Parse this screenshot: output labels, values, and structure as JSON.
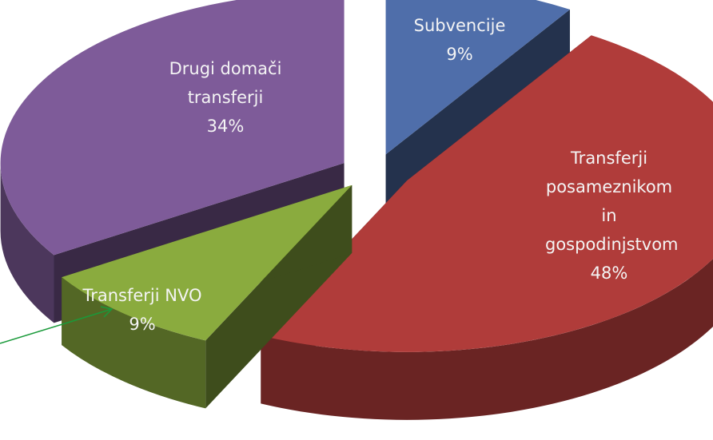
{
  "chart_data": {
    "type": "pie",
    "three_d": true,
    "exploded": true,
    "categories": [
      "Subvencije",
      "Transferji posameznikom in gospodinjstvom",
      "Transferji NVO",
      "Drugi domači transferji"
    ],
    "values": [
      9,
      48,
      9,
      34
    ],
    "value_labels": [
      "9%",
      "48%",
      "9%",
      "34%"
    ],
    "colors": [
      "#4f6eaa",
      "#b03c3a",
      "#8aab3e",
      "#7e5b99"
    ]
  }
}
